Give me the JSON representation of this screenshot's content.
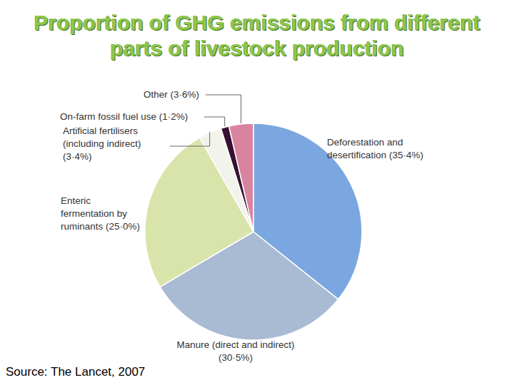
{
  "chart_data": {
    "type": "pie",
    "title": "Proportion of GHG emissions from different parts of livestock production",
    "source": "Source: The Lancet, 2007",
    "categories": [
      "Deforestation and desertification",
      "Manure (direct and indirect)",
      "Enteric fermentation by ruminants",
      "Artificial fertilisers (including indirect)",
      "On-farm fossil fuel use",
      "Other"
    ],
    "values": [
      35.4,
      30.5,
      25.0,
      3.4,
      1.2,
      3.6
    ],
    "value_labels": [
      "(35·4%)",
      "(30·5%)",
      "(25·0%)",
      "(3·4%)",
      "(1·2%)",
      "(3·6%)"
    ],
    "colors": [
      "#7ba7e0",
      "#a9bad3",
      "#d8e4aa",
      "#f2f3ea",
      "#3a0f32",
      "#d9849f"
    ],
    "data_labels": true
  }
}
